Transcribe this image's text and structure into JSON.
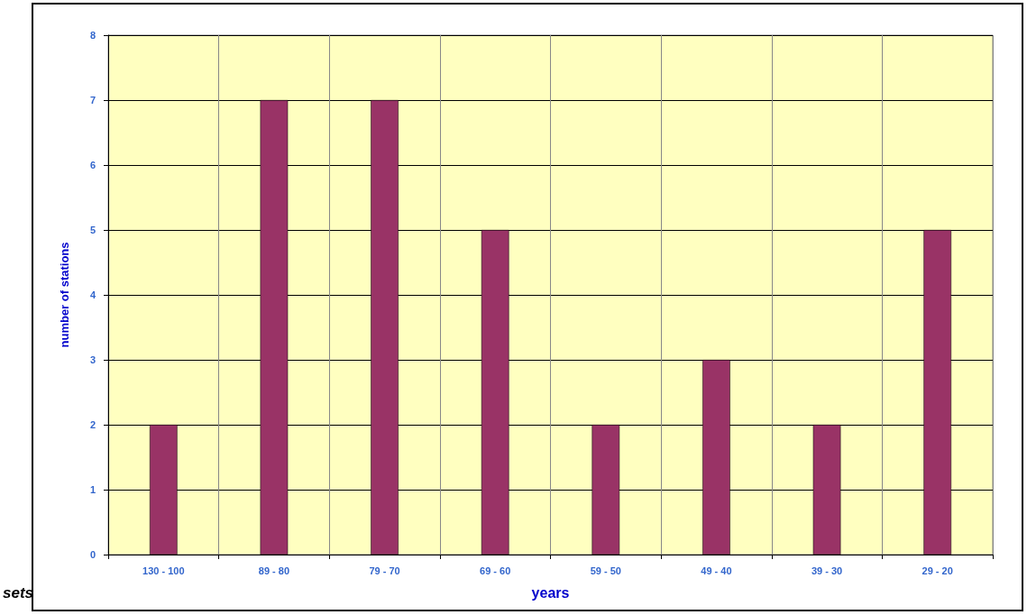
{
  "chart_data": {
    "type": "bar",
    "xlabel": "years",
    "ylabel": "number of stations",
    "categories": [
      "130 - 100",
      "89 - 80",
      "79 - 70",
      "69 - 60",
      "59 - 50",
      "49 - 40",
      "39 - 30",
      "29 - 20"
    ],
    "values": [
      2,
      7,
      7,
      5,
      2,
      3,
      2,
      5
    ],
    "color": "#993366",
    "ylim": [
      0,
      8
    ],
    "yticks": [
      0,
      1,
      2,
      3,
      4,
      5,
      6,
      7,
      8
    ],
    "grid": true,
    "annotations": [
      "sets"
    ]
  }
}
